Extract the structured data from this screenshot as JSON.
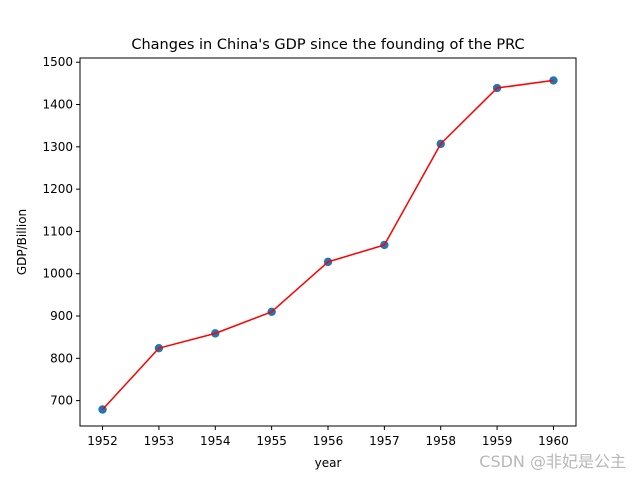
{
  "chart_data": {
    "type": "line",
    "title": "Changes in China's GDP since the founding of the PRC",
    "xlabel": "year",
    "ylabel": "GDP/Billion",
    "x": [
      1952,
      1953,
      1954,
      1955,
      1956,
      1957,
      1958,
      1959,
      1960
    ],
    "series": [
      {
        "name": "GDP",
        "values": [
          679,
          824,
          859,
          910,
          1028,
          1068,
          1307,
          1439,
          1457
        ],
        "line_color": "#ff0000",
        "marker_color": "#1f77b4"
      }
    ],
    "xlim": [
      1951.6,
      1960.4
    ],
    "ylim": [
      640,
      1510
    ],
    "x_ticks": [
      1952,
      1953,
      1954,
      1955,
      1956,
      1957,
      1958,
      1959,
      1960
    ],
    "y_ticks": [
      700,
      800,
      900,
      1000,
      1100,
      1200,
      1300,
      1400,
      1500
    ],
    "grid": false
  },
  "watermark": "CSDN @非妃是公主"
}
